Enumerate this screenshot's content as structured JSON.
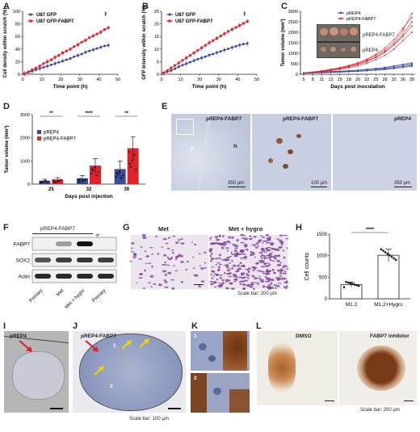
{
  "panels": {
    "A": "A",
    "B": "B",
    "C": "C",
    "D": "D",
    "E": "E",
    "F": "F",
    "G": "G",
    "H": "H",
    "I": "I",
    "J": "J",
    "K": "K",
    "L": "L"
  },
  "colors": {
    "gfp": "#3b4a9a",
    "fabp7": "#e0232a",
    "blot_bg": "#f1f1f1",
    "ihc_blue": "#c7cde0",
    "stain_brown": "#8a4a22",
    "crystal_violet": "#7a3c90"
  },
  "chart_A": {
    "type": "line",
    "ylabel": "Cell density within scratch (%)",
    "xlabel": "Time point (h)",
    "xlim": [
      0,
      50
    ],
    "ylim": [
      0,
      100
    ],
    "xticks": [
      0,
      10,
      20,
      30,
      40,
      50
    ],
    "yticks": [
      0,
      20,
      40,
      60,
      80,
      100
    ],
    "annotation": "**",
    "x": [
      1,
      3,
      5,
      7,
      9,
      11,
      13,
      15,
      17,
      19,
      21,
      23,
      25,
      27,
      29,
      31,
      33,
      35,
      37,
      39,
      41,
      43,
      45
    ],
    "series": [
      {
        "name": "U87 GFP",
        "values": [
          1,
          3,
          5,
          7,
          9,
          11,
          13,
          15,
          17,
          19,
          21,
          23,
          25,
          28,
          30,
          32,
          35,
          37,
          39,
          41,
          43,
          45,
          46
        ]
      },
      {
        "name": "U87 GFP-FABP7",
        "values": [
          1,
          4,
          7,
          10,
          13,
          17,
          20,
          23,
          27,
          30,
          34,
          37,
          40,
          44,
          47,
          51,
          54,
          58,
          61,
          64,
          67,
          71,
          74
        ]
      }
    ]
  },
  "chart_B": {
    "type": "line",
    "ylabel": "GFP intensity within scratch (%)",
    "xlabel": "Time point (h)",
    "xlim": [
      0,
      50
    ],
    "ylim": [
      0,
      25
    ],
    "xticks": [
      0,
      10,
      20,
      30,
      40,
      50
    ],
    "yticks": [
      0,
      5,
      10,
      15,
      20,
      25
    ],
    "annotation": "**",
    "x": [
      1,
      3,
      5,
      7,
      9,
      11,
      13,
      15,
      17,
      19,
      21,
      23,
      25,
      27,
      29,
      31,
      33,
      35,
      37,
      39,
      41,
      43,
      45
    ],
    "series": [
      {
        "name": "U87 GFP",
        "values": [
          0.5,
          1,
          1.5,
          2.2,
          3,
          3.6,
          4.2,
          4.8,
          5.4,
          6,
          6.5,
          7,
          7.6,
          8,
          8.6,
          9.1,
          9.6,
          10.1,
          10.6,
          11.1,
          11.6,
          12,
          12.2
        ]
      },
      {
        "name": "U87 GFP-FABP7",
        "values": [
          0.5,
          1.5,
          2.5,
          3.5,
          4.5,
          5.5,
          6.5,
          7.5,
          8.5,
          9.5,
          10.5,
          11.5,
          12.5,
          13.4,
          14.3,
          15.2,
          16.1,
          17,
          17.8,
          18.6,
          19.4,
          20.2,
          21
        ]
      }
    ]
  },
  "chart_C": {
    "type": "line",
    "ylabel": "Tumor volume (mm³)",
    "xlabel": "Days post inoculation",
    "ylim": [
      0,
      3000
    ],
    "yticks": [
      0,
      500,
      1000,
      1500,
      2000,
      2500,
      3000
    ],
    "categories": [
      "5",
      "8",
      "11",
      "13",
      "15",
      "18",
      "20",
      "22",
      "25",
      "28",
      "32",
      "36",
      "39"
    ],
    "series": [
      {
        "name": "pREP4",
        "values": [
          [
            60,
            80,
            90,
            110,
            130,
            160,
            190,
            220,
            260,
            300,
            380,
            450,
            500
          ],
          [
            50,
            70,
            80,
            95,
            110,
            130,
            150,
            170,
            200,
            250,
            300,
            360,
            420
          ],
          [
            70,
            90,
            110,
            130,
            150,
            170,
            200,
            240,
            280,
            330,
            400,
            470,
            540
          ],
          [
            40,
            60,
            70,
            85,
            100,
            120,
            140,
            160,
            190,
            220,
            270,
            320,
            380
          ],
          [
            60,
            80,
            100,
            120,
            140,
            160,
            180,
            210,
            240,
            280,
            330,
            390,
            450
          ]
        ]
      },
      {
        "name": "pREP4-FABP7",
        "values": [
          [
            60,
            100,
            150,
            220,
            300,
            400,
            520,
            680,
            900,
            1150,
            1500,
            2100,
            2900
          ],
          [
            50,
            90,
            130,
            190,
            260,
            350,
            460,
            600,
            800,
            1050,
            1400,
            1900,
            2500
          ],
          [
            70,
            110,
            170,
            240,
            320,
            420,
            550,
            720,
            950,
            1250,
            1650,
            2200,
            2700
          ],
          [
            40,
            80,
            120,
            170,
            230,
            310,
            400,
            520,
            700,
            900,
            1200,
            1600,
            2000
          ],
          [
            60,
            100,
            140,
            200,
            280,
            370,
            480,
            630,
            820,
            1080,
            1400,
            1800,
            2300
          ]
        ]
      }
    ],
    "inset_labels": [
      "pREP4-FABP7",
      "pREP4"
    ]
  },
  "chart_D": {
    "type": "bar",
    "ylabel": "Tumor volume (mm³)",
    "xlabel": "Days post injection",
    "ylim": [
      0,
      3000
    ],
    "yticks": [
      0,
      1000,
      2000,
      3000
    ],
    "categories": [
      "25",
      "32",
      "39"
    ],
    "series": [
      {
        "name": "pREP4",
        "values": [
          150,
          250,
          650
        ],
        "err": [
          60,
          120,
          350
        ]
      },
      {
        "name": "pREP4-FABP7",
        "values": [
          200,
          800,
          1550
        ],
        "err": [
          80,
          300,
          500
        ]
      }
    ],
    "significance": [
      "**",
      "****",
      "**"
    ]
  },
  "panel_E": {
    "labels": [
      "pREP4-FABP7",
      "pREP4-FABP7",
      "pREP4"
    ],
    "scalebars": [
      "350 μm",
      "100 μm",
      "350 μm"
    ],
    "region_labels": [
      "P",
      "N"
    ]
  },
  "panel_F": {
    "group_label": "pREP4-FABP7",
    "side_label": "pREP4",
    "rows": [
      "FABP7",
      "SOX2",
      "Actin"
    ],
    "lanes": [
      "Primary",
      "Met",
      "Met + hygro",
      "Primary"
    ],
    "intensity": [
      [
        0.0,
        0.35,
        1.0,
        0.0
      ],
      [
        0.7,
        0.8,
        0.85,
        0.8
      ],
      [
        0.9,
        0.9,
        0.9,
        0.9
      ]
    ]
  },
  "panel_G": {
    "labels": [
      "Met",
      "Met + hygro"
    ],
    "scalebar": "Scale bar: 200 μm"
  },
  "chart_H": {
    "type": "bar",
    "ylabel": "Cell counts",
    "ylim": [
      0,
      1500
    ],
    "yticks": [
      0,
      500,
      1000,
      1500
    ],
    "categories": [
      "M1.2",
      "M1.2+Hygro"
    ],
    "values": [
      330,
      1010
    ],
    "err": [
      60,
      140
    ],
    "significance": "****"
  },
  "panel_I": {
    "label": "pREP4"
  },
  "panel_J": {
    "label": "pREP4-FABP7",
    "region_labels": [
      "1",
      "2"
    ],
    "scalebar": "Scale bar: 100 μm"
  },
  "panel_K": {
    "region_labels": [
      "1",
      "2"
    ]
  },
  "panel_L": {
    "labels": [
      "DMSO",
      "FABP7 inhibitor"
    ],
    "scalebar": "Scale bar: 200 μm"
  }
}
